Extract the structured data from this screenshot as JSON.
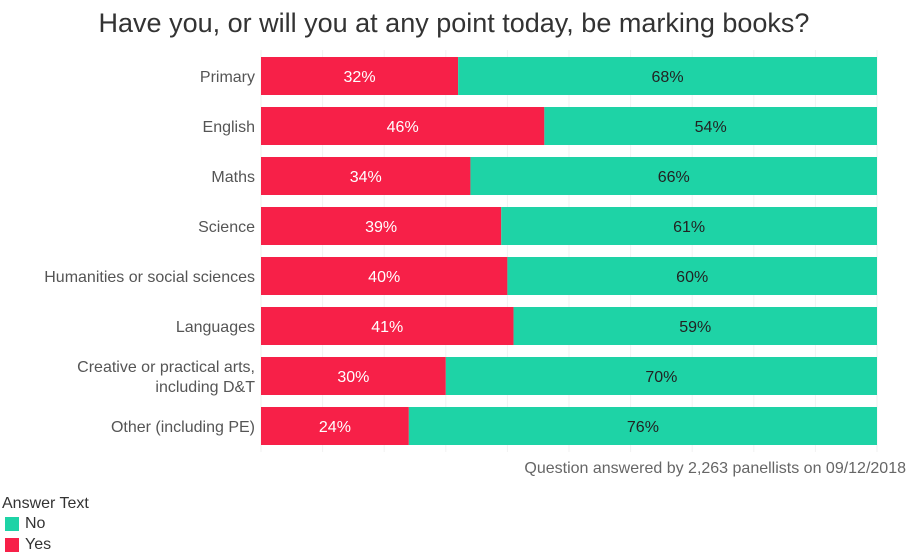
{
  "chart_data": {
    "type": "bar",
    "stacked": true,
    "orientation": "horizontal",
    "title": "Have you, or will you at any point today, be marking books?",
    "categories": [
      "Primary",
      "English",
      "Maths",
      "Science",
      "Humanities or social sciences",
      "Languages",
      "Creative or practical arts, including D&T",
      "Other (including PE)"
    ],
    "series": [
      {
        "name": "Yes",
        "color": "#F72048",
        "values": [
          32,
          46,
          34,
          39,
          40,
          41,
          30,
          24
        ]
      },
      {
        "name": "No",
        "color": "#1ED3A6",
        "values": [
          68,
          54,
          66,
          61,
          60,
          59,
          70,
          76
        ]
      }
    ],
    "value_labels": {
      "Yes": [
        "32%",
        "46%",
        "34%",
        "39%",
        "40%",
        "41%",
        "30%",
        "24%"
      ],
      "No": [
        "68%",
        "54%",
        "66%",
        "61%",
        "60%",
        "59%",
        "70%",
        "76%"
      ]
    },
    "xlim": [
      0,
      100
    ],
    "note": "Question answered by 2,263 panellists on 09/12/2018",
    "legend": {
      "title": "Answer Text",
      "entries": [
        "No",
        "Yes"
      ],
      "placement": "bottom-left"
    }
  }
}
